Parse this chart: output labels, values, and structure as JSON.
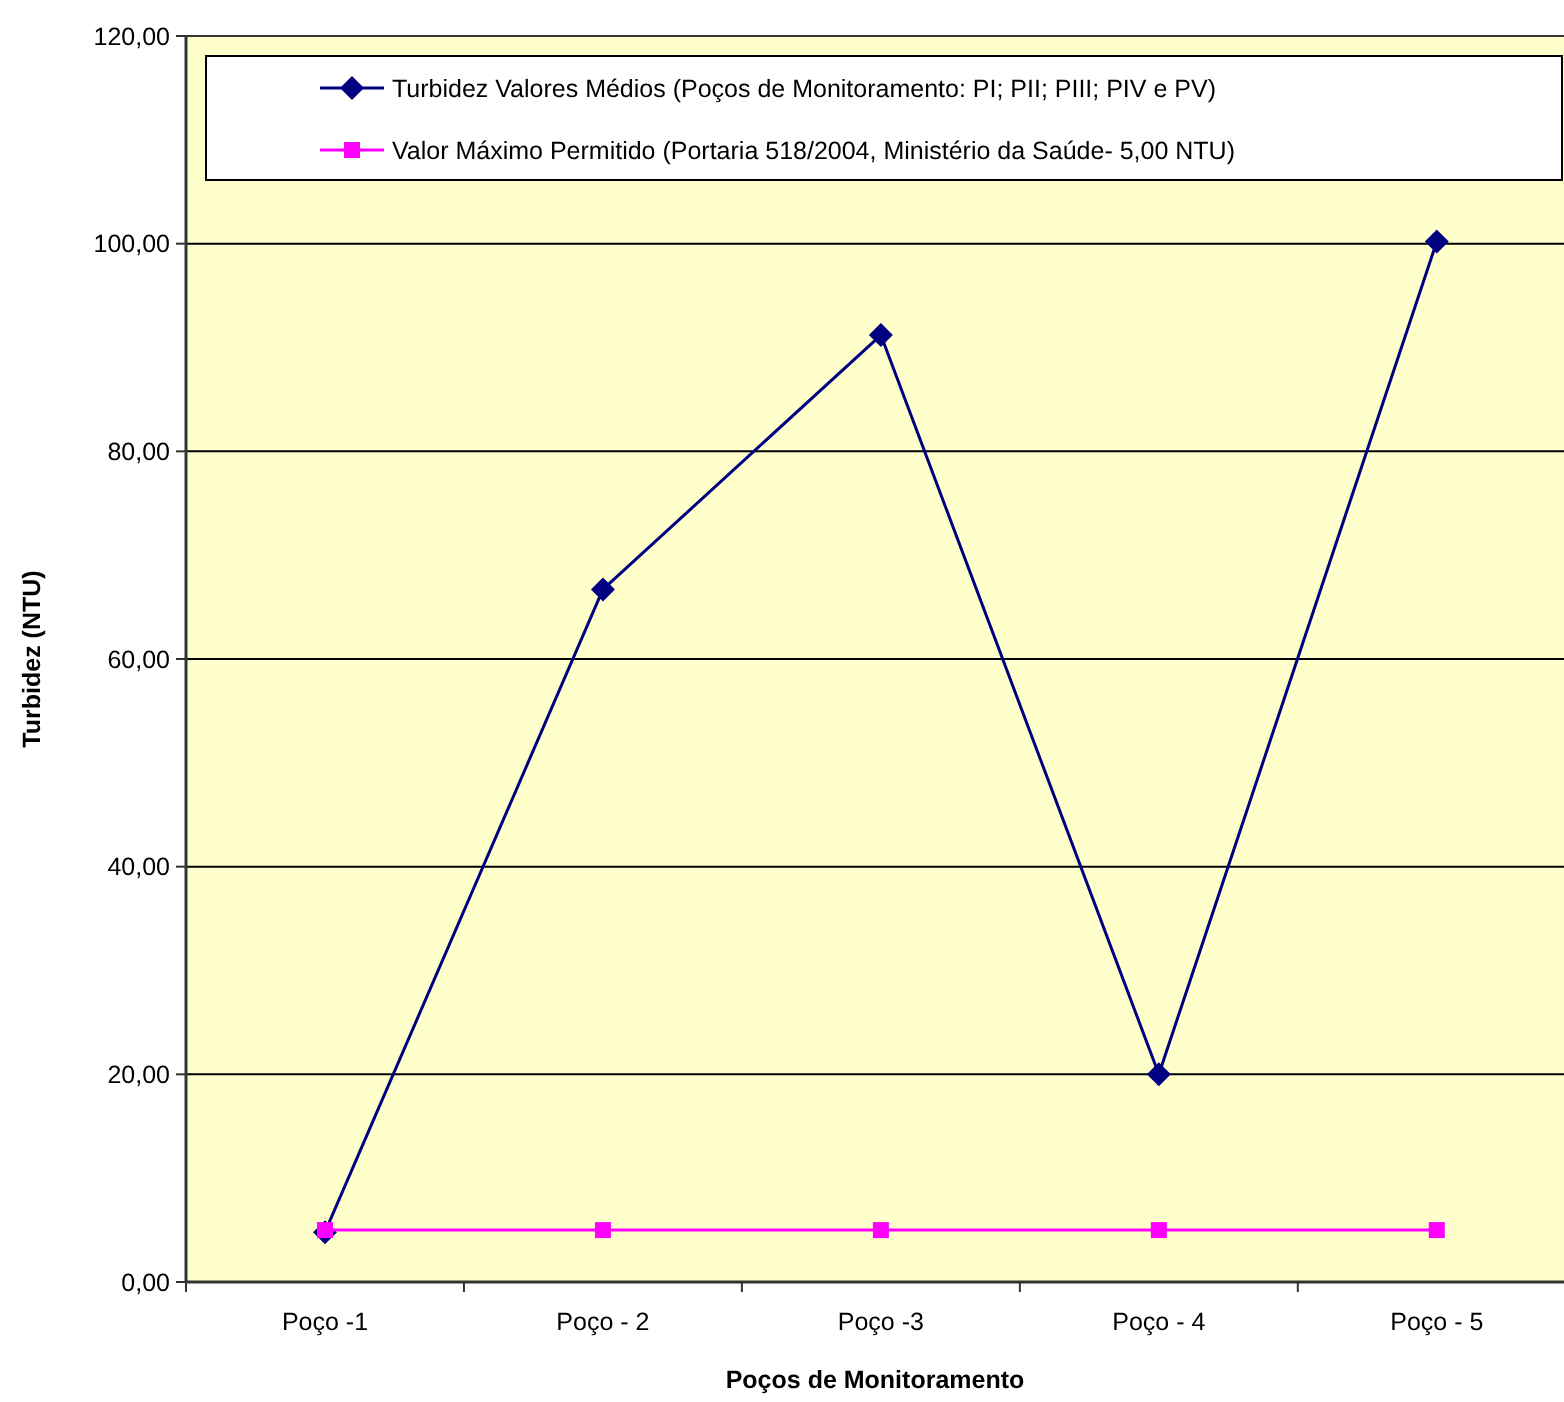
{
  "chart_data": {
    "type": "line",
    "xlabel": "Poços de Monitoramento",
    "ylabel": "Turbidez (NTU)",
    "categories": [
      "Poço -1",
      "Poço - 2",
      "Poço -3",
      "Poço - 4",
      "Poço - 5"
    ],
    "series": [
      {
        "name": "Turbidez Valores Médios (Poços de Monitoramento: PI; PII; PIII; PIV e PV)",
        "color": "#000080",
        "marker": "diamond",
        "values": [
          4.8,
          66.7,
          91.2,
          20,
          100.2
        ]
      },
      {
        "name": "Valor Máximo Permitido (Portaria 518/2004, Ministério da Saúde- 5,00 NTU)",
        "color": "#ff00ff",
        "marker": "square",
        "values": [
          5,
          5,
          5,
          5,
          5
        ]
      }
    ],
    "ylim": [
      0,
      120
    ],
    "yticks": [
      {
        "value": 0,
        "label": "0,00"
      },
      {
        "value": 20,
        "label": "20,00"
      },
      {
        "value": 40,
        "label": "40,00"
      },
      {
        "value": 60,
        "label": "60,00"
      },
      {
        "value": 80,
        "label": "80,00"
      },
      {
        "value": 100,
        "label": "100,00"
      },
      {
        "value": 120,
        "label": "120,00"
      }
    ],
    "grid": "y",
    "legend": "top",
    "line_style": "solid"
  }
}
